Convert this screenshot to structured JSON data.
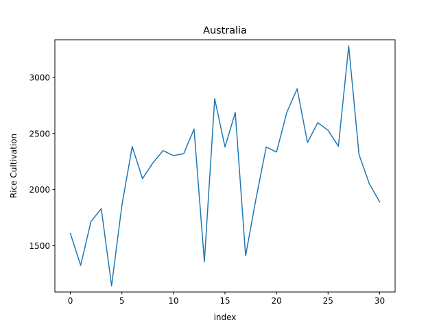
{
  "chart_data": {
    "type": "line",
    "title": "Australia",
    "xlabel": "index",
    "ylabel": "Rice Cultivation",
    "x": [
      0,
      1,
      2,
      3,
      4,
      5,
      6,
      7,
      8,
      9,
      10,
      11,
      12,
      13,
      14,
      15,
      16,
      17,
      18,
      19,
      20,
      21,
      22,
      23,
      24,
      25,
      26,
      27,
      28,
      29,
      30
    ],
    "series": [
      {
        "name": "",
        "color": "#1f77b4",
        "values": [
          1610,
          1325,
          1715,
          1830,
          1143,
          1860,
          2383,
          2098,
          2237,
          2348,
          2303,
          2320,
          2540,
          1357,
          2810,
          2380,
          2687,
          1410,
          1915,
          2380,
          2335,
          2690,
          2898,
          2420,
          2597,
          2528,
          2386,
          3280,
          2313,
          2052,
          1890
        ]
      }
    ],
    "xlim": [
      -1.5,
      31.5
    ],
    "ylim": [
      1088,
      3335
    ],
    "xticks": [
      0,
      5,
      10,
      15,
      20,
      25,
      30
    ],
    "yticks": [
      1500,
      2000,
      2500,
      3000
    ],
    "grid": false
  }
}
